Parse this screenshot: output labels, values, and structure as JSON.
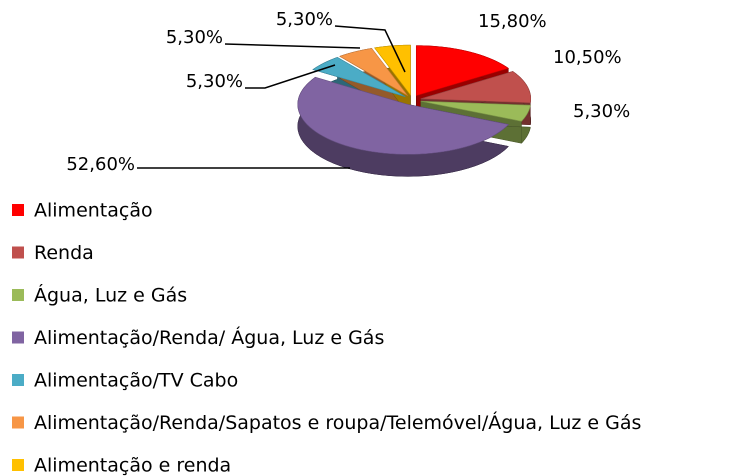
{
  "chart_data": {
    "type": "pie",
    "categories": [
      "Alimentação",
      "Renda",
      "Água, Luz e Gás",
      "Alimentação/Renda/ Água, Luz e Gás",
      "Alimentação/TV Cabo",
      "Alimentação/Renda/Sapatos e roupa/Telemóvel/Água, Luz e Gás",
      "Alimentação e renda"
    ],
    "values": [
      15.8,
      10.5,
      5.3,
      52.6,
      5.3,
      5.3,
      5.3
    ],
    "value_labels": [
      "15,80%",
      "10,50%",
      "5,30%",
      "52,60%",
      "5,30%",
      "5,30%",
      "5,30%"
    ],
    "colors": [
      "#ff0000",
      "#c0504d",
      "#9bbb59",
      "#8064a2",
      "#4bacc6",
      "#f79646",
      "#ffc000"
    ],
    "legend": "bottom"
  }
}
